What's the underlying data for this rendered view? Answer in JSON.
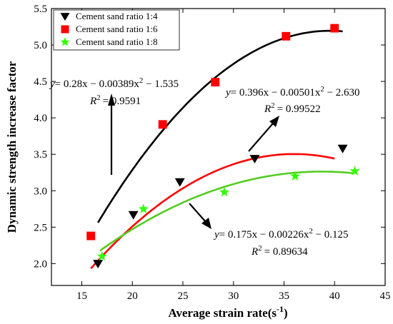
{
  "chart_data": {
    "type": "scatter",
    "xlabel_main": "Average strain rate",
    "xlabel_unit_base": "(s",
    "xlabel_unit_exp": "-1",
    "xlabel_unit_close": ")",
    "ylabel": "Dynamic strength increase factor",
    "xlim": [
      12,
      45
    ],
    "ylim": [
      1.7,
      5.5
    ],
    "x_ticks": [
      15,
      20,
      25,
      30,
      35,
      40,
      45
    ],
    "y_ticks": [
      2.0,
      2.5,
      3.0,
      3.5,
      4.0,
      4.5,
      5.0,
      5.5
    ],
    "y_tick_labels": [
      "2.0",
      "2.5",
      "3.0",
      "3.5",
      "4.0",
      "4.5",
      "5.0",
      "5.5"
    ],
    "legend_position": "top-left",
    "series": [
      {
        "name": "Cement sand ratio 1:4",
        "marker": "triangle-down",
        "color": "#000000",
        "line_color": "#000000",
        "points": [
          [
            16.6,
            2.0
          ],
          [
            20.1,
            2.67
          ],
          [
            24.7,
            3.12
          ],
          [
            32.1,
            3.44
          ],
          [
            40.8,
            3.58
          ]
        ],
        "fit": {
          "a": 0.396,
          "b": -0.00501,
          "c": -2.63,
          "x_range": [
            16.6,
            40.8
          ]
        },
        "equation": "y = 0.396x − 0.00501x² − 2.630",
        "r2": "0.99522"
      },
      {
        "name": "Cement sand ratio 1:6",
        "marker": "square",
        "color": "#ff0000",
        "line_color": "#ff0000",
        "points": [
          [
            15.9,
            2.38
          ],
          [
            23.0,
            3.91
          ],
          [
            28.2,
            4.49
          ],
          [
            35.2,
            5.12
          ],
          [
            40.0,
            5.23
          ]
        ],
        "fit": {
          "a": 0.28,
          "b": -0.00389,
          "c": -1.535,
          "x_range": [
            15.9,
            40.0
          ]
        },
        "equation": "y = 0.28x − 0.00389x² − 1.535",
        "r2": "0.9591"
      },
      {
        "name": "Cement sand ratio 1:8",
        "marker": "star",
        "color": "#33ff00",
        "line_color": "#55cc22",
        "points": [
          [
            17.0,
            2.1
          ],
          [
            21.1,
            2.75
          ],
          [
            29.1,
            2.98
          ],
          [
            36.1,
            3.2
          ],
          [
            42.0,
            3.27
          ]
        ],
        "fit": {
          "a": 0.175,
          "b": -0.00226,
          "c": -0.125,
          "x_range": [
            16.8,
            42.0
          ]
        },
        "equation": "y = 0.175x − 0.00226x² − 0.125",
        "r2": "0.89634"
      }
    ],
    "annotations": {
      "eq_1_6": {
        "y": "y",
        "eq": "= 0.28x − 0.00389x",
        "tail": " − 1.535",
        "r2_label": "R",
        "r2_value": "= 0.9591"
      },
      "eq_1_4": {
        "y": "y",
        "eq": "= 0.396x − 0.00501x",
        "tail": " − 2.630",
        "r2_label": "R",
        "r2_value": "= 0.99522"
      },
      "eq_1_8": {
        "y": "y",
        "eq": "= 0.175x − 0.00226x",
        "tail": " − 0.125",
        "r2_label": "R",
        "r2_value": "= 0.89634"
      },
      "sq": "2"
    }
  }
}
